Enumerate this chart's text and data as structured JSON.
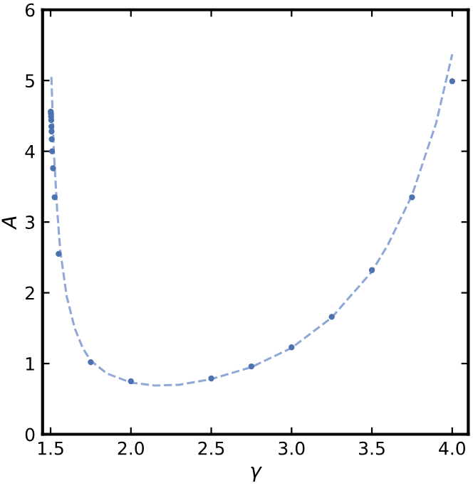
{
  "chart_data": {
    "type": "scatter",
    "xlabel": "γ",
    "ylabel": "A",
    "xlim": [
      1.45,
      4.1
    ],
    "ylim": [
      0,
      6
    ],
    "xticks": [
      1.5,
      {
        "value": 2,
        "label": "2.0"
      },
      2.5,
      {
        "value": 3,
        "label": "3.0"
      },
      3.5,
      {
        "value": 4,
        "label": "4.0"
      }
    ],
    "yticks": [
      0,
      1,
      2,
      3,
      4,
      5,
      6
    ],
    "grid": false,
    "series": [
      {
        "color": "#4c72b0",
        "marker": "circle",
        "x": [
          1.501,
          1.502,
          1.503,
          1.504,
          1.505,
          1.506,
          1.507,
          1.509,
          1.515,
          1.525,
          1.55,
          1.75,
          2.0,
          2.5,
          2.75,
          3.0,
          3.25,
          3.5,
          3.75,
          4.0
        ],
        "values": [
          4.56,
          4.53,
          4.49,
          4.44,
          4.35,
          4.28,
          4.17,
          4.0,
          3.76,
          3.35,
          2.55,
          1.02,
          0.75,
          0.79,
          0.96,
          1.23,
          1.66,
          2.32,
          3.35,
          4.99
        ]
      },
      {
        "type": "line",
        "color": "#8fa8d8",
        "line_style": "dashed",
        "marker": "none",
        "x": [
          1.505,
          1.52,
          1.54,
          1.56,
          1.6,
          1.65,
          1.7,
          1.75,
          1.85,
          2.0,
          2.15,
          2.3,
          2.5,
          2.75,
          3.0,
          3.25,
          3.5,
          3.6,
          3.75,
          3.9,
          4.0
        ],
        "values": [
          5.05,
          4.0,
          3.2,
          2.6,
          1.95,
          1.5,
          1.22,
          1.04,
          0.86,
          0.73,
          0.69,
          0.7,
          0.78,
          0.95,
          1.22,
          1.65,
          2.3,
          2.68,
          3.38,
          4.4,
          5.37
        ]
      }
    ]
  }
}
